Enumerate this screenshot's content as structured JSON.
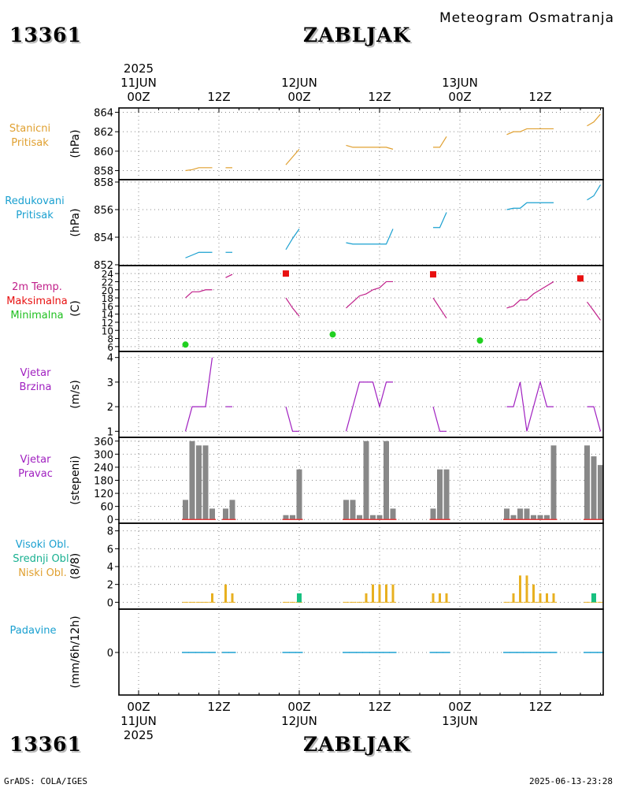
{
  "header": {
    "station_id": "13361",
    "station_name": "ZABLJAK",
    "product": "Meteogram Osmatranja"
  },
  "footer": {
    "station_id": "13361",
    "station_name": "ZABLJAK",
    "credit": "GrADS: COLA/IGES",
    "timestamp": "2025-06-13-23:28"
  },
  "time_axis": {
    "top": [
      {
        "day": "11JUN",
        "year": "2025",
        "hour": "00Z"
      },
      {
        "hour": "12Z"
      },
      {
        "day": "12JUN",
        "hour": "00Z"
      },
      {
        "hour": "12Z"
      },
      {
        "day": "13JUN",
        "hour": "00Z"
      },
      {
        "hour": "12Z"
      }
    ],
    "bottom": [
      {
        "hour": "00Z",
        "day": "11JUN",
        "year": "2025"
      },
      {
        "hour": "12Z"
      },
      {
        "hour": "00Z",
        "day": "12JUN"
      },
      {
        "hour": "12Z"
      },
      {
        "hour": "00Z",
        "day": "13JUN"
      },
      {
        "hour": "12Z"
      }
    ]
  },
  "colors": {
    "station_pressure": "#e0a030",
    "reduced_pressure": "#1aa0d0",
    "temperature": "#c0208a",
    "tmax": "#e81010",
    "tmin": "#20d020",
    "wind": "#a020c0",
    "wind_dir_bar": "#888888",
    "calm_mark": "#e04040",
    "cloud_high": "#1aa0d0",
    "cloud_mid": "#18c080",
    "cloud_low": "#e8b020",
    "precip": "#1aa0d0",
    "grid": "#888888"
  },
  "chart_data": [
    {
      "type": "line",
      "panel": "station_pressure",
      "label_lines": [
        "Stanicni",
        "Pritisak"
      ],
      "ylabel": "(hPa)",
      "ylim": [
        857.8,
        864.2
      ],
      "yticks": [
        858,
        860,
        862,
        864
      ],
      "x_unit": "hours since 2025-06-11 00Z",
      "segments": [
        {
          "x": [
            7,
            8,
            9,
            10,
            11
          ],
          "y": [
            858.0,
            858.1,
            858.3,
            858.3,
            858.3
          ]
        },
        {
          "x": [
            13,
            14
          ],
          "y": [
            858.3,
            858.3
          ]
        },
        {
          "x": [
            22,
            23,
            24
          ],
          "y": [
            858.6,
            859.4,
            860.2
          ]
        },
        {
          "x": [
            31,
            32,
            33,
            34,
            35,
            36,
            37,
            38
          ],
          "y": [
            860.6,
            860.4,
            860.4,
            860.4,
            860.4,
            860.4,
            860.4,
            860.2
          ]
        },
        {
          "x": [
            44,
            45,
            46
          ],
          "y": [
            860.4,
            860.4,
            861.5
          ]
        },
        {
          "x": [
            55,
            56,
            57,
            58,
            59,
            60,
            61,
            62
          ],
          "y": [
            861.7,
            862.0,
            862.0,
            862.3,
            862.3,
            862.3,
            862.3,
            862.3
          ]
        },
        {
          "x": [
            67,
            68,
            69
          ],
          "y": [
            862.6,
            863.0,
            863.8
          ]
        }
      ]
    },
    {
      "type": "line",
      "panel": "reduced_pressure",
      "label_lines": [
        "Redukovani",
        "Pritisak"
      ],
      "ylabel": "(hPa)",
      "ylim": [
        852,
        858
      ],
      "yticks": [
        852,
        854,
        856,
        858
      ],
      "x_unit": "hours since 2025-06-11 00Z",
      "segments": [
        {
          "x": [
            7,
            8,
            9,
            10,
            11
          ],
          "y": [
            852.5,
            852.7,
            852.9,
            852.9,
            852.9
          ]
        },
        {
          "x": [
            13,
            14
          ],
          "y": [
            852.9,
            852.9
          ]
        },
        {
          "x": [
            22,
            23,
            24
          ],
          "y": [
            853.1,
            853.9,
            854.6
          ]
        },
        {
          "x": [
            31,
            32,
            33,
            34,
            35,
            36,
            37,
            38
          ],
          "y": [
            853.6,
            853.5,
            853.5,
            853.5,
            853.5,
            853.5,
            853.5,
            854.6
          ]
        },
        {
          "x": [
            44,
            45,
            46
          ],
          "y": [
            854.7,
            854.7,
            855.8
          ]
        },
        {
          "x": [
            55,
            56,
            57,
            58,
            59,
            60,
            61,
            62
          ],
          "y": [
            856.0,
            856.1,
            856.1,
            856.5,
            856.5,
            856.5,
            856.5,
            856.5
          ]
        },
        {
          "x": [
            67,
            68,
            69
          ],
          "y": [
            856.7,
            857.0,
            857.8
          ]
        }
      ]
    },
    {
      "type": "line",
      "panel": "temperature",
      "label_lines": [
        "2m Temp.",
        "Maksimalna",
        "Minimalna"
      ],
      "ylabel": "(C)",
      "ylim": [
        5,
        25
      ],
      "yticks": [
        6,
        8,
        10,
        12,
        14,
        16,
        18,
        20,
        22,
        24
      ],
      "x_unit": "hours since 2025-06-11 00Z",
      "segments": [
        {
          "x": [
            7,
            8,
            9,
            10,
            11
          ],
          "y": [
            18.0,
            19.5,
            19.5,
            20.0,
            20.0
          ]
        },
        {
          "x": [
            13,
            14
          ],
          "y": [
            23.0,
            23.8
          ]
        },
        {
          "x": [
            22,
            23,
            24
          ],
          "y": [
            18.0,
            15.5,
            13.5
          ]
        },
        {
          "x": [
            31,
            32,
            33,
            34,
            35,
            36,
            37,
            38
          ],
          "y": [
            15.5,
            17.0,
            18.5,
            19.0,
            20.0,
            20.5,
            22.0,
            22.0
          ]
        },
        {
          "x": [
            44,
            45,
            46
          ],
          "y": [
            18.0,
            15.5,
            13.0
          ]
        },
        {
          "x": [
            55,
            56,
            57,
            58,
            59,
            60,
            61,
            62
          ],
          "y": [
            15.5,
            16.0,
            17.5,
            17.5,
            19.0,
            20.0,
            21.0,
            22.0
          ]
        },
        {
          "x": [
            67,
            68,
            69
          ],
          "y": [
            17.0,
            14.8,
            12.5
          ]
        }
      ],
      "tmax": [
        {
          "x": 22,
          "y": 24.0
        },
        {
          "x": 44,
          "y": 23.8
        },
        {
          "x": 66,
          "y": 22.8
        }
      ],
      "tmin": [
        {
          "x": 7,
          "y": 6.5
        },
        {
          "x": 29,
          "y": 9.0
        },
        {
          "x": 51,
          "y": 7.5
        }
      ]
    },
    {
      "type": "line",
      "panel": "wind_speed",
      "label_lines": [
        "Vjetar",
        "Brzina"
      ],
      "ylabel": "(m/s)",
      "ylim": [
        0.85,
        4.15
      ],
      "yticks": [
        1,
        2,
        3,
        4
      ],
      "x_unit": "hours since 2025-06-11 00Z",
      "segments": [
        {
          "x": [
            7,
            8,
            9,
            10,
            11
          ],
          "y": [
            1,
            2,
            2,
            2,
            4
          ]
        },
        {
          "x": [
            13,
            14
          ],
          "y": [
            2,
            2
          ]
        },
        {
          "x": [
            22,
            23,
            24
          ],
          "y": [
            2,
            1,
            1
          ]
        },
        {
          "x": [
            31,
            32,
            33,
            34,
            35,
            36,
            37,
            38
          ],
          "y": [
            1,
            2,
            3,
            3,
            3,
            2,
            3,
            3
          ]
        },
        {
          "x": [
            44,
            45,
            46
          ],
          "y": [
            2,
            1,
            1
          ]
        },
        {
          "x": [
            55,
            56,
            57,
            58,
            59,
            60,
            61,
            62
          ],
          "y": [
            2,
            2,
            3,
            1,
            2,
            3,
            2,
            2
          ]
        },
        {
          "x": [
            67,
            68,
            69
          ],
          "y": [
            2,
            2,
            1
          ]
        }
      ]
    },
    {
      "type": "bar",
      "panel": "wind_direction",
      "label_lines": [
        "Vjetar",
        "Pravac"
      ],
      "ylabel": "(stepeni)",
      "ylim": [
        -10,
        370
      ],
      "yticks": [
        0,
        60,
        120,
        180,
        240,
        300,
        360
      ],
      "x_unit": "hours since 2025-06-11 00Z",
      "x": [
        7,
        8,
        9,
        10,
        11,
        13,
        14,
        22,
        23,
        24,
        31,
        32,
        33,
        34,
        35,
        36,
        37,
        38,
        44,
        45,
        46,
        55,
        56,
        57,
        58,
        59,
        60,
        61,
        62,
        67,
        68,
        69
      ],
      "values": [
        90,
        360,
        340,
        340,
        50,
        50,
        90,
        20,
        20,
        230,
        90,
        90,
        20,
        360,
        20,
        20,
        360,
        50,
        50,
        230,
        230,
        50,
        20,
        50,
        50,
        20,
        20,
        20,
        340,
        340,
        290,
        250
      ]
    },
    {
      "type": "bar",
      "panel": "clouds",
      "label_lines": [
        "Visoki Obl.",
        "Srednji Obl.",
        "Niski Obl."
      ],
      "ylabel": "(8/8)",
      "ylim": [
        -0.5,
        8.5
      ],
      "yticks": [
        0,
        2,
        4,
        6,
        8
      ],
      "x_unit": "hours since 2025-06-11 00Z",
      "series": [
        {
          "name": "Niski Obl.",
          "x": [
            11,
            13,
            14,
            34,
            35,
            36,
            37,
            38,
            44,
            45,
            46,
            56,
            57,
            58,
            59,
            60,
            61,
            62
          ],
          "values": [
            1,
            2,
            1,
            1,
            2,
            2,
            2,
            2,
            1,
            1,
            1,
            1,
            3,
            3,
            2,
            1,
            1,
            1
          ]
        },
        {
          "name": "Srednji Obl.",
          "x": [
            24,
            68
          ],
          "values": [
            1,
            1
          ]
        },
        {
          "name": "Visoki Obl.",
          "x": [],
          "values": []
        }
      ],
      "observed_hours": [
        7,
        8,
        9,
        10,
        11,
        13,
        14,
        22,
        23,
        24,
        31,
        32,
        33,
        34,
        35,
        36,
        37,
        38,
        44,
        45,
        46,
        55,
        56,
        57,
        58,
        59,
        60,
        61,
        62,
        67,
        68,
        69
      ]
    },
    {
      "type": "bar",
      "panel": "precipitation",
      "label_lines": [
        "Padavine"
      ],
      "ylabel": "(mm/6h/12h)",
      "ylim": [
        -1,
        1
      ],
      "yticks": [
        0
      ],
      "x_unit": "hours since 2025-06-11 00Z",
      "x": [
        7,
        8,
        9,
        10,
        11,
        13,
        14,
        22,
        23,
        24,
        31,
        32,
        33,
        34,
        35,
        36,
        37,
        38,
        44,
        45,
        46,
        55,
        56,
        57,
        58,
        59,
        60,
        61,
        62,
        67,
        68,
        69
      ],
      "values": [
        0,
        0,
        0,
        0,
        0,
        0,
        0,
        0,
        0,
        0,
        0,
        0,
        0,
        0,
        0,
        0,
        0,
        0,
        0,
        0,
        0,
        0,
        0,
        0,
        0,
        0,
        0,
        0,
        0,
        0,
        0,
        0
      ]
    }
  ]
}
